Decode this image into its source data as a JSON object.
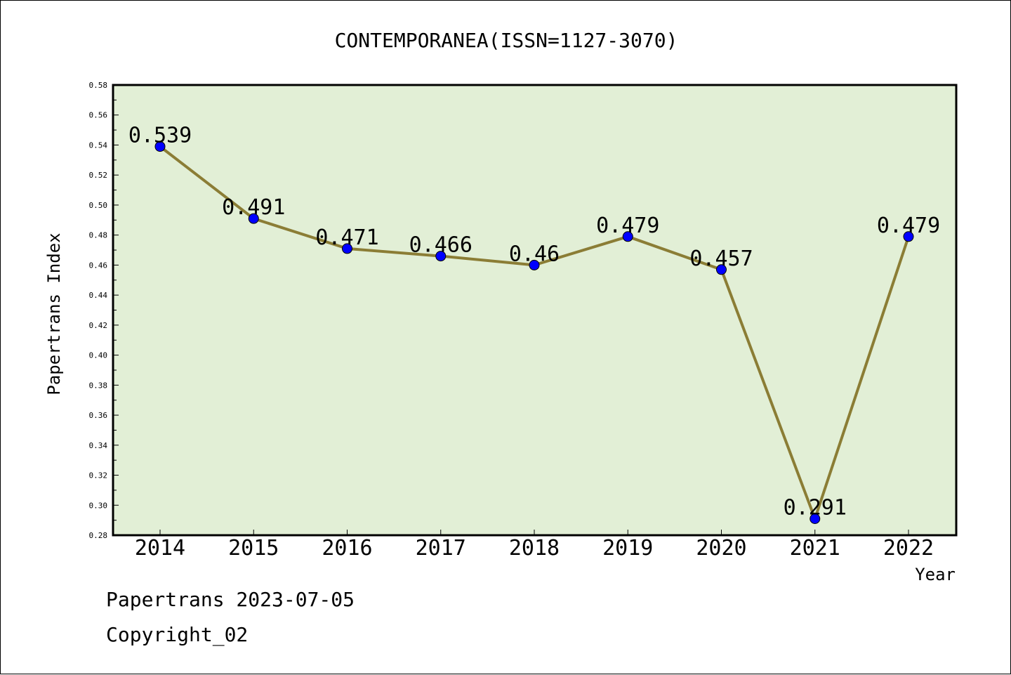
{
  "chart_data": {
    "type": "line",
    "title": "CONTEMPORANEA(ISSN=1127-3070)",
    "xlabel": "Year",
    "ylabel": "Papertrans Index",
    "categories": [
      "2014",
      "2015",
      "2016",
      "2017",
      "2018",
      "2019",
      "2020",
      "2021",
      "2022"
    ],
    "values": [
      0.539,
      0.491,
      0.471,
      0.466,
      0.46,
      0.479,
      0.457,
      0.291,
      0.479
    ],
    "data_labels": [
      "0.539",
      "0.491",
      "0.471",
      "0.466",
      "0.46",
      "0.479",
      "0.457",
      "0.291",
      "0.479"
    ],
    "ylim": [
      0.28,
      0.58
    ],
    "y_ticks": [
      "0.28",
      "0.30",
      "0.32",
      "0.34",
      "0.36",
      "0.38",
      "0.40",
      "0.42",
      "0.44",
      "0.46",
      "0.48",
      "0.50",
      "0.52",
      "0.54",
      "0.56",
      "0.58"
    ],
    "grid": false,
    "colors": {
      "plot_background": "#e2efd6",
      "line": "#8b7d35",
      "marker": "#0000ff"
    }
  },
  "footer": {
    "line1": "Papertrans 2023-07-05",
    "line2": "Copyright_02"
  }
}
